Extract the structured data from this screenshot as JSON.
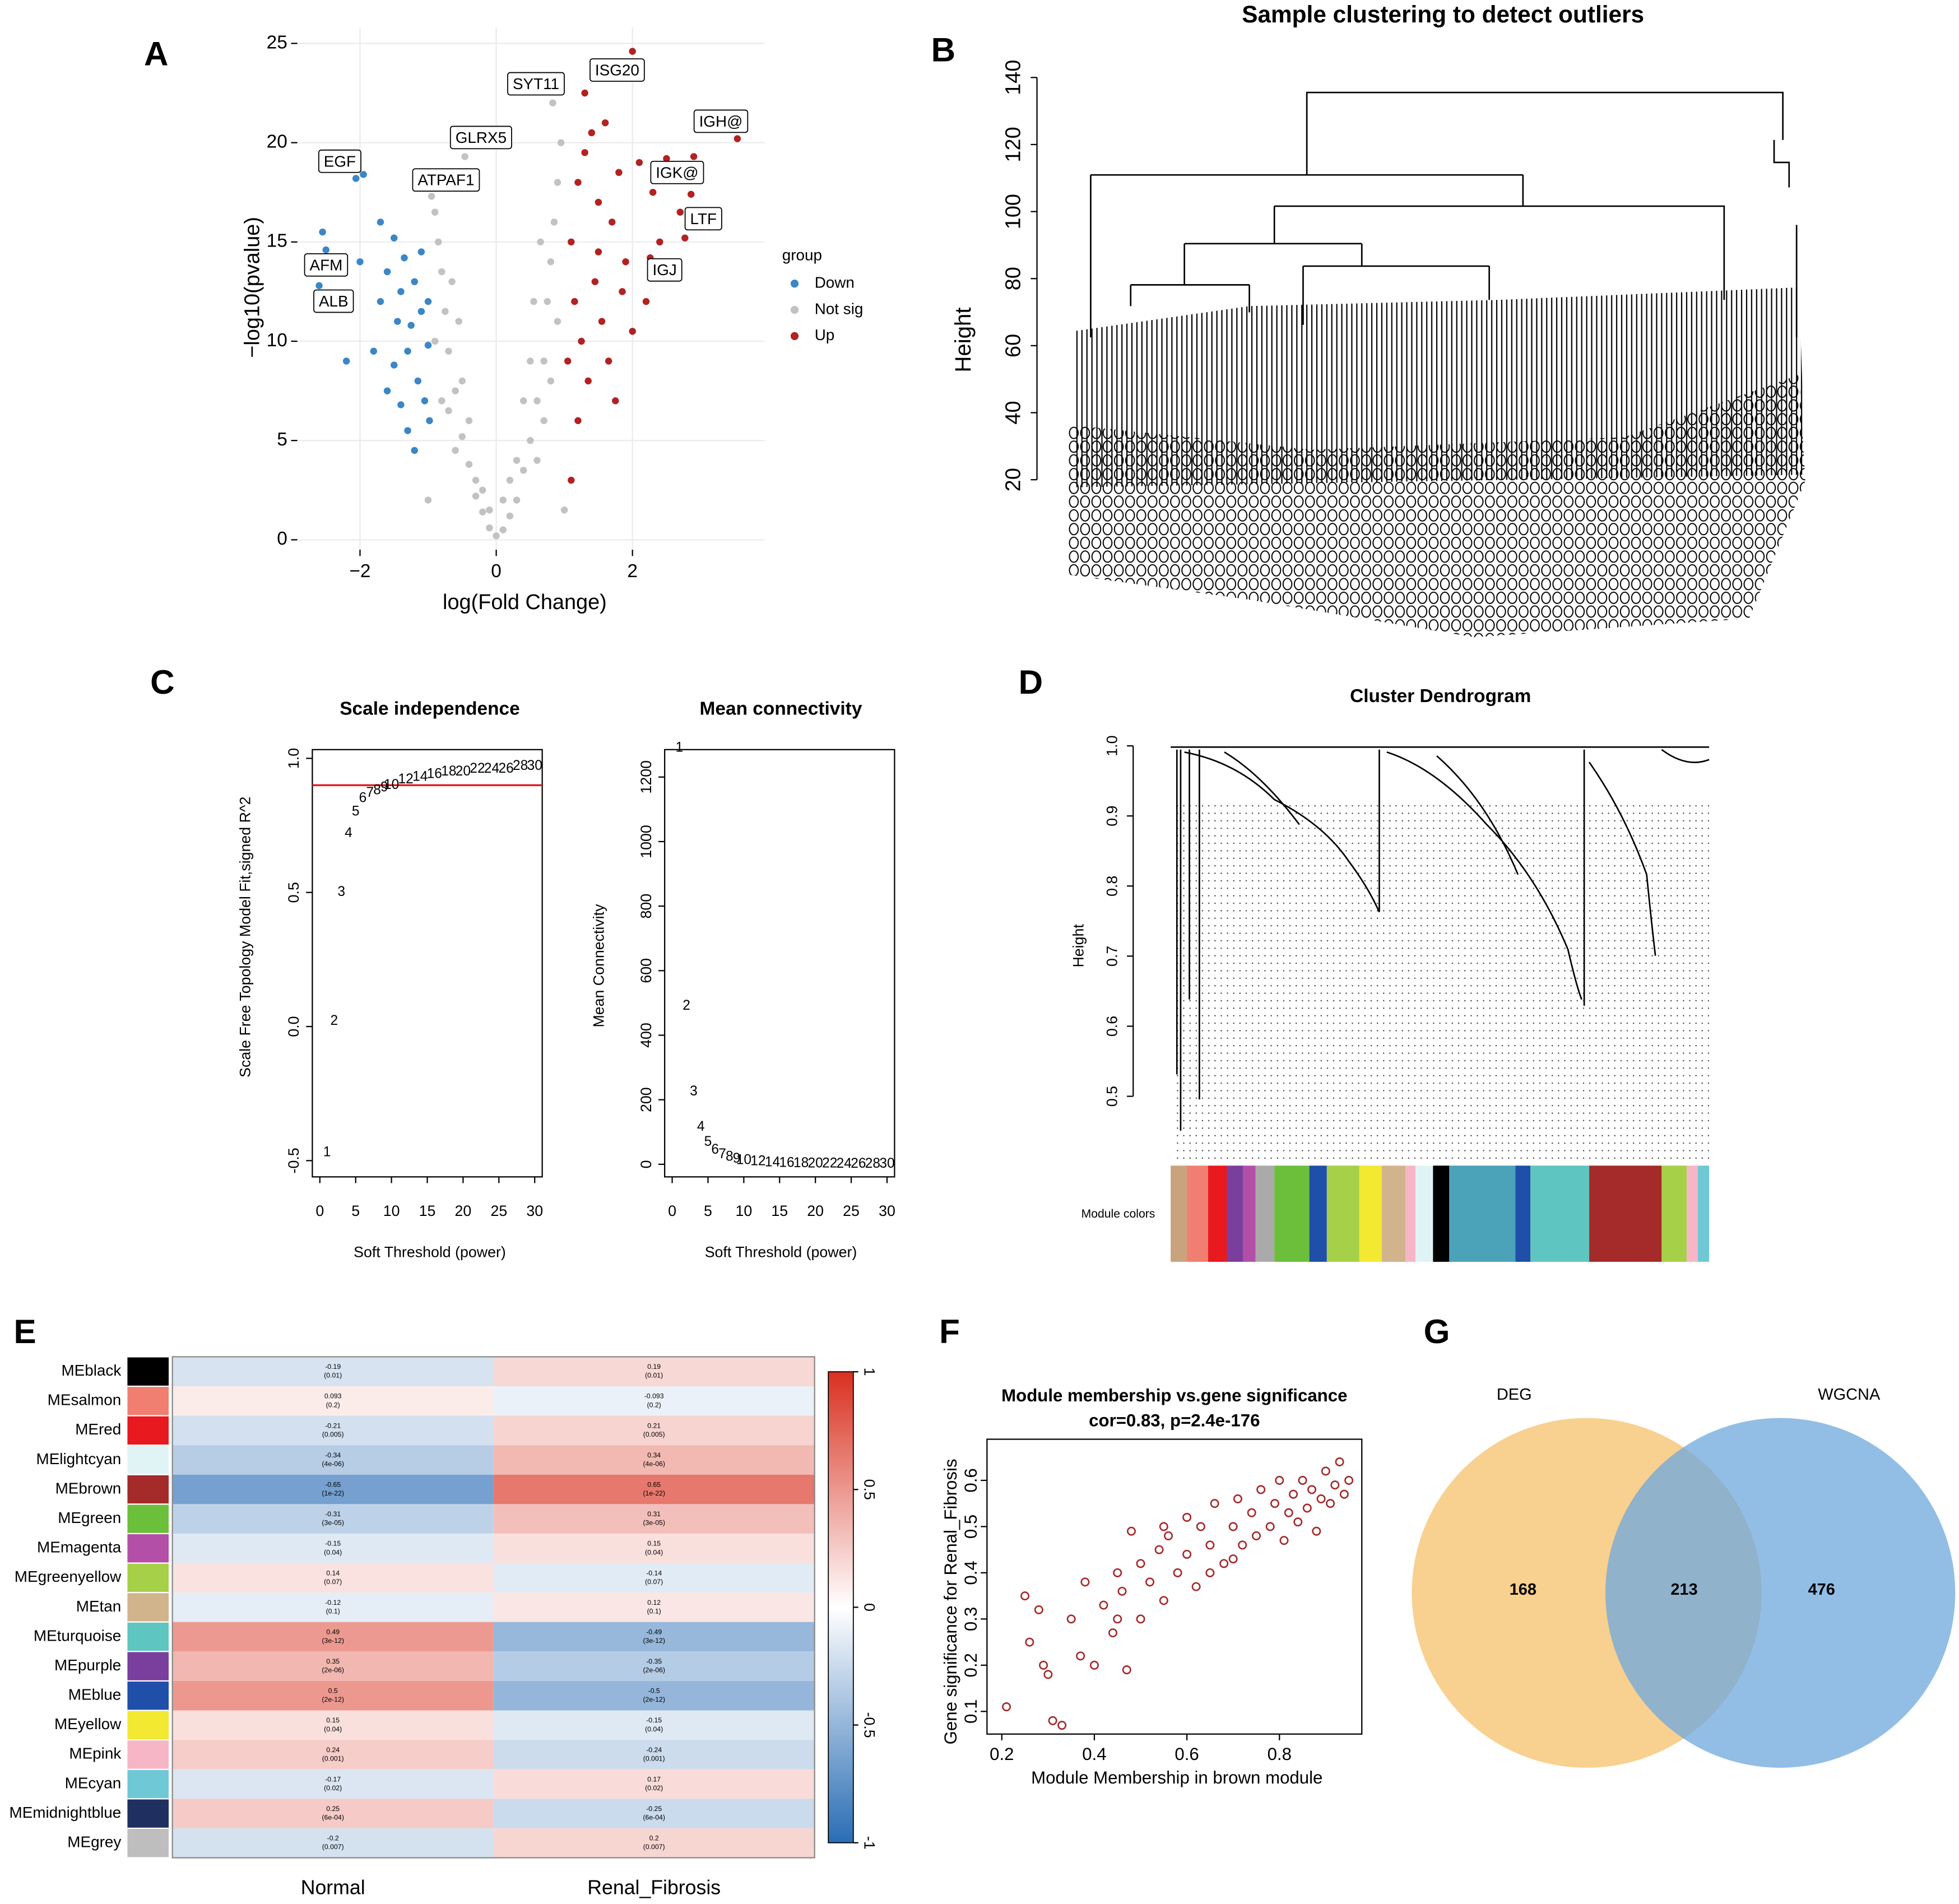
{
  "chart_data": [
    {
      "type": "scatter",
      "panel_label": "A",
      "xlabel": "log(Fold Change)",
      "ylabel": "−log10(pvalue)",
      "xlim": [
        -2.92,
        3.94
      ],
      "ylim": [
        -0.5,
        25.8
      ],
      "xticks": [
        {
          "value": -2,
          "label": "−2"
        },
        0,
        2
      ],
      "yticks": [
        0,
        5,
        10,
        15,
        20,
        25
      ],
      "grid": true,
      "legend_title": "group",
      "annotations": [
        "EGF",
        "AFM",
        "ALB",
        "ATPAF1",
        "GLRX5",
        "SYT11",
        "ISG20",
        "IGH@",
        "IGK@",
        "LTF",
        "IGJ"
      ],
      "series": [
        {
          "name": "Down",
          "color": "#3b86c6",
          "x": [
            -2.06,
            -2.5,
            -2.6,
            -2.55,
            -2.0,
            -1.95,
            -1.7,
            -1.6,
            -1.5,
            -1.45,
            -1.4,
            -1.35,
            -1.3,
            -1.25,
            -1.2,
            -1.15,
            -1.1,
            -1.05,
            -1.0,
            -0.98,
            -1.8,
            -1.6,
            -1.4,
            -1.3,
            -1.2,
            -1.1,
            -1.7,
            -2.2,
            -1.5,
            -1.0
          ],
          "values": [
            18.2,
            14.6,
            12.8,
            15.5,
            14.0,
            18.4,
            16.0,
            13.5,
            15.2,
            11.0,
            12.5,
            14.2,
            9.5,
            10.8,
            13.0,
            8.0,
            11.5,
            7.0,
            9.8,
            6.0,
            9.5,
            7.5,
            6.8,
            5.5,
            4.5,
            14.5,
            12.0,
            9.0,
            8.8,
            12.0
          ]
        },
        {
          "name": "Not sig",
          "color": "#c2c2c2",
          "x": [
            0,
            0.1,
            -0.1,
            0.2,
            -0.2,
            0.3,
            -0.3,
            0.4,
            -0.4,
            0.5,
            -0.5,
            0.6,
            -0.6,
            0.7,
            -0.7,
            0.75,
            -0.75,
            0.8,
            -0.8,
            0.85,
            -0.85,
            0.9,
            -0.9,
            0.83,
            -0.46,
            -0.95,
            0.95,
            0.6,
            -0.6,
            0.3,
            -0.3,
            0.5,
            -0.5,
            0.2,
            -0.2,
            0.7,
            -0.7,
            0.9,
            -0.9,
            0.8,
            -0.8,
            0.65,
            -0.65,
            0.55,
            -0.55,
            0.4,
            -0.4,
            1.0,
            -1.0,
            0.1,
            -0.1
          ],
          "values": [
            0.2,
            0.5,
            0.6,
            1.2,
            1.4,
            2.0,
            2.2,
            3.5,
            3.8,
            5,
            5.2,
            7,
            7.5,
            9,
            9.5,
            12,
            11.5,
            14,
            13.5,
            16,
            15,
            18,
            16.5,
            22.0,
            19.3,
            17.3,
            20,
            4,
            4.5,
            4,
            3,
            9,
            8,
            3,
            2.5,
            6,
            6.5,
            11,
            10,
            8,
            7,
            15,
            13,
            12,
            11,
            7,
            6,
            1.5,
            2.0,
            2.0,
            1.5
          ]
        },
        {
          "name": "Up",
          "color": "#b22222",
          "x": [
            2.0,
            3.54,
            2.86,
            2.77,
            2.26,
            1.1,
            1.2,
            1.3,
            1.4,
            1.5,
            1.6,
            1.7,
            1.8,
            1.9,
            2.1,
            2.3,
            2.5,
            2.7,
            2.9,
            1.15,
            1.25,
            1.35,
            1.45,
            1.55,
            1.65,
            1.75,
            1.85,
            2.0,
            2.2,
            1.1,
            1.2,
            1.05,
            1.5,
            2.4,
            1.3
          ],
          "values": [
            24.6,
            20.2,
            17.4,
            15.2,
            14.2,
            3.0,
            18,
            19.5,
            20.5,
            17,
            21,
            16,
            18.5,
            14,
            19,
            17.5,
            19.2,
            16.5,
            19.3,
            12,
            10,
            8,
            13,
            11,
            9,
            7,
            12.5,
            10.5,
            12,
            15,
            6,
            9,
            14.5,
            15,
            22.5
          ]
        }
      ]
    },
    {
      "type": "dendrogram",
      "panel_label": "B",
      "title": "Sample clustering to detect outliers",
      "ylabel": "Height",
      "ylim": [
        10.3,
        148.2
      ],
      "yticks": [
        20,
        40,
        60,
        80,
        100,
        120,
        140
      ]
    },
    {
      "type": "scatter",
      "marker": "text",
      "panel_label": "C",
      "title": "Scale independence",
      "xlabel": "Soft Threshold (power)",
      "ylabel": "Scale Free Topology Model Fit,signed R^2",
      "xlim": [
        -1.05,
        31.05
      ],
      "ylim": [
        -0.5606,
        1.0326
      ],
      "xticks": [
        0,
        5,
        10,
        15,
        20,
        25,
        30
      ],
      "yticks": [
        -0.5,
        {
          "value": 0,
          "label": "0.0"
        },
        0.5,
        {
          "value": 1,
          "label": "1.0"
        }
      ],
      "color": "#e8191f",
      "hline": 0.9,
      "x": [
        1,
        2,
        3,
        4,
        5,
        6,
        7,
        8,
        9,
        10,
        12,
        14,
        16,
        18,
        20,
        22,
        24,
        26,
        28,
        30
      ],
      "values": [
        -0.47,
        0.02,
        0.5,
        0.72,
        0.8,
        0.85,
        0.87,
        0.88,
        0.89,
        0.9,
        0.92,
        0.93,
        0.94,
        0.95,
        0.95,
        0.96,
        0.96,
        0.96,
        0.97,
        0.97
      ]
    },
    {
      "type": "scatter",
      "marker": "text",
      "title": "Mean connectivity",
      "xlabel": "Soft Threshold (power)",
      "ylabel": "Mean Connectivity",
      "xlim": [
        -1.05,
        31.05
      ],
      "ylim": [
        -39,
        1285
      ],
      "xticks": [
        0,
        5,
        10,
        15,
        20,
        25,
        30
      ],
      "yticks": [
        0,
        200,
        400,
        600,
        800,
        1000,
        1200
      ],
      "color": "#e8191f",
      "x": [
        1,
        2,
        3,
        4,
        5,
        6,
        7,
        8,
        9,
        10,
        12,
        14,
        16,
        18,
        20,
        22,
        24,
        26,
        28,
        30
      ],
      "values": [
        1290,
        490,
        225,
        115,
        68,
        44,
        30,
        22,
        16,
        12,
        8,
        5,
        3.5,
        2.5,
        1.8,
        1.3,
        1,
        0.8,
        0.6,
        0.5
      ]
    },
    {
      "type": "dendrogram",
      "panel_label": "D",
      "title": "Cluster Dendrogram",
      "ylabel": "Height",
      "ylim": [
        0.41,
        1.0
      ],
      "yticks": [
        0.5,
        0.6,
        0.7,
        0.8,
        0.9,
        {
          "value": 1,
          "label": "1.0"
        }
      ],
      "colorbar_label": "Module colors"
    },
    {
      "type": "heatmap",
      "panel_label": "E",
      "rows": [
        "MEblack",
        "MEsalmon",
        "MEred",
        "MElightcyan",
        "MEbrown",
        "MEgreen",
        "MEmagenta",
        "MEgreenyellow",
        "MEtan",
        "MEturquoise",
        "MEpurple",
        "MEblue",
        "MEyellow",
        "MEpink",
        "MEcyan",
        "MEmidnightblue",
        "MEgrey"
      ],
      "row_colors": [
        "#000000",
        "#f07f72",
        "#e8191f",
        "#e0f4f6",
        "#a52a2a",
        "#6cbf3b",
        "#b44fa8",
        "#a6d047",
        "#d2b48c",
        "#5ec5c0",
        "#7a3f9d",
        "#1f4fa8",
        "#f3e832",
        "#f7b6c6",
        "#6fc8d6",
        "#1f2f5f",
        "#bebebe"
      ],
      "columns": [
        "Normal",
        "Renal_Fibrosis"
      ],
      "values": [
        [
          -0.19,
          0.19
        ],
        [
          0.093,
          -0.093
        ],
        [
          -0.21,
          0.21
        ],
        [
          -0.34,
          0.34
        ],
        [
          -0.65,
          0.65
        ],
        [
          -0.31,
          0.31
        ],
        [
          -0.15,
          0.15
        ],
        [
          0.14,
          -0.14
        ],
        [
          -0.12,
          0.12
        ],
        [
          0.49,
          -0.49
        ],
        [
          0.35,
          -0.35
        ],
        [
          0.5,
          -0.5
        ],
        [
          0.15,
          -0.15
        ],
        [
          0.24,
          -0.24
        ],
        [
          -0.17,
          0.17
        ],
        [
          0.25,
          -0.25
        ],
        [
          -0.2,
          0.2
        ]
      ],
      "pvalue_labels": [
        [
          "(0.01)",
          "(0.01)"
        ],
        [
          "(0.2)",
          "(0.2)"
        ],
        [
          "(0.005)",
          "(0.005)"
        ],
        [
          "(4e-06)",
          "(4e-06)"
        ],
        [
          "(1e-22)",
          "(1e-22)"
        ],
        [
          "(3e-05)",
          "(3e-05)"
        ],
        [
          "(0.04)",
          "(0.04)"
        ],
        [
          "(0.07)",
          "(0.07)"
        ],
        [
          "(0.1)",
          "(0.1)"
        ],
        [
          "(3e-12)",
          "(3e-12)"
        ],
        [
          "(2e-06)",
          "(2e-06)"
        ],
        [
          "(2e-12)",
          "(2e-12)"
        ],
        [
          "(0.04)",
          "(0.04)"
        ],
        [
          "(0.001)",
          "(0.001)"
        ],
        [
          "(0.02)",
          "(0.02)"
        ],
        [
          "(6e-04)",
          "(6e-04)"
        ],
        [
          "(0.007)",
          "(0.007)"
        ]
      ],
      "clim": [
        -1,
        1
      ],
      "cticks": [
        -1,
        -0.5,
        0,
        0.5,
        1
      ],
      "colormap": [
        "#2a6db5",
        "#ffffff",
        "#d9301f"
      ]
    },
    {
      "type": "scatter",
      "panel_label": "F",
      "title": "Module membership vs.gene significance",
      "subtitle": "cor=0.83, p=2.4e-176",
      "xlabel": "Module Membership in brown module",
      "ylabel": "Gene significance for Renal_Fibrosis",
      "xlim": [
        0.168,
        0.978
      ],
      "ylim": [
        0.051,
        0.689
      ],
      "xticks": [
        0.2,
        0.4,
        0.6,
        0.8
      ],
      "yticks": [
        0.1,
        0.2,
        0.3,
        0.4,
        0.5,
        0.6
      ],
      "color": "#a52a2a",
      "hollow": true,
      "x": [
        0.21,
        0.25,
        0.26,
        0.28,
        0.29,
        0.3,
        0.31,
        0.33,
        0.35,
        0.37,
        0.38,
        0.4,
        0.42,
        0.44,
        0.45,
        0.46,
        0.47,
        0.48,
        0.5,
        0.5,
        0.52,
        0.54,
        0.55,
        0.56,
        0.58,
        0.6,
        0.6,
        0.62,
        0.63,
        0.65,
        0.66,
        0.68,
        0.7,
        0.71,
        0.72,
        0.74,
        0.75,
        0.76,
        0.78,
        0.79,
        0.8,
        0.81,
        0.82,
        0.83,
        0.84,
        0.85,
        0.86,
        0.87,
        0.88,
        0.89,
        0.9,
        0.91,
        0.92,
        0.93,
        0.94,
        0.95,
        0.55,
        0.65,
        0.7,
        0.45
      ],
      "values": [
        0.11,
        0.35,
        0.25,
        0.32,
        0.2,
        0.18,
        0.08,
        0.07,
        0.3,
        0.22,
        0.38,
        0.2,
        0.33,
        0.27,
        0.4,
        0.36,
        0.19,
        0.49,
        0.3,
        0.42,
        0.38,
        0.45,
        0.34,
        0.48,
        0.4,
        0.52,
        0.44,
        0.37,
        0.5,
        0.46,
        0.55,
        0.42,
        0.5,
        0.56,
        0.46,
        0.53,
        0.48,
        0.58,
        0.5,
        0.55,
        0.6,
        0.47,
        0.53,
        0.57,
        0.51,
        0.6,
        0.54,
        0.58,
        0.49,
        0.56,
        0.62,
        0.55,
        0.59,
        0.64,
        0.57,
        0.6,
        0.5,
        0.4,
        0.43,
        0.3
      ]
    },
    {
      "type": "venn",
      "panel_label": "G",
      "sets": [
        {
          "name": "DEG",
          "color": "#f5c06a"
        },
        {
          "name": "WGCNA",
          "color": "#6ea8dd"
        }
      ],
      "values": [
        168,
        213,
        476
      ]
    }
  ]
}
